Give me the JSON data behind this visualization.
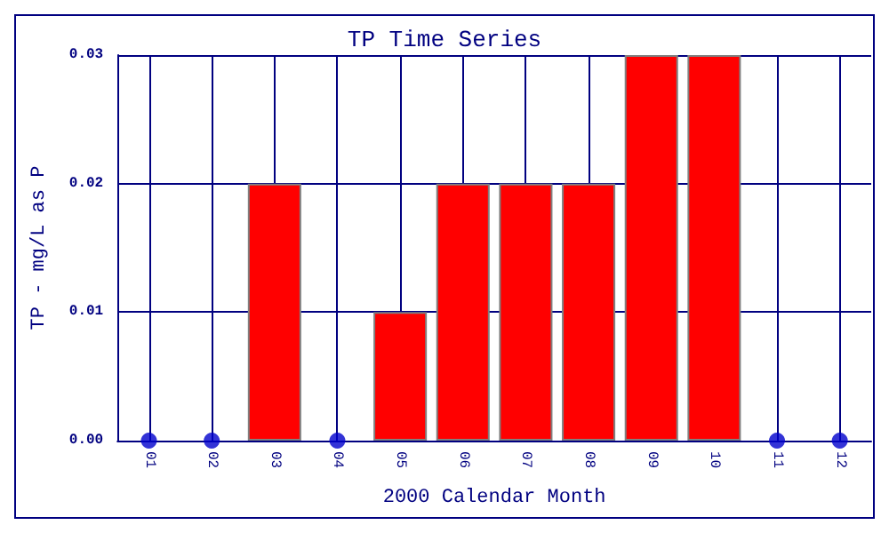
{
  "chart_data": {
    "type": "bar",
    "title": "TP Time Series",
    "xlabel": "2000 Calendar Month",
    "ylabel": "TP - mg/L as P",
    "categories": [
      "01",
      "02",
      "03",
      "04",
      "05",
      "06",
      "07",
      "08",
      "09",
      "10",
      "11",
      "12"
    ],
    "series": [
      {
        "color": "#ff0000",
        "values": [
          0,
          0,
          0.02,
          0,
          0.01,
          0.02,
          0.02,
          0.02,
          0.03,
          0.03,
          0,
          0
        ]
      },
      {
        "type": "scatter",
        "color": "#0000cc",
        "x": [
          "01",
          "02",
          "04",
          "11",
          "12"
        ],
        "values": [
          0,
          0,
          0,
          0,
          0
        ]
      }
    ],
    "ylim": [
      0,
      0.03
    ],
    "yticks": [
      {
        "value": 0,
        "label": "0.00"
      },
      {
        "value": 0.01,
        "label": "0.01"
      },
      {
        "value": 0.02,
        "label": "0.02"
      },
      {
        "value": 0.03,
        "label": "0.03"
      }
    ],
    "grid": true,
    "marker": "circle"
  }
}
